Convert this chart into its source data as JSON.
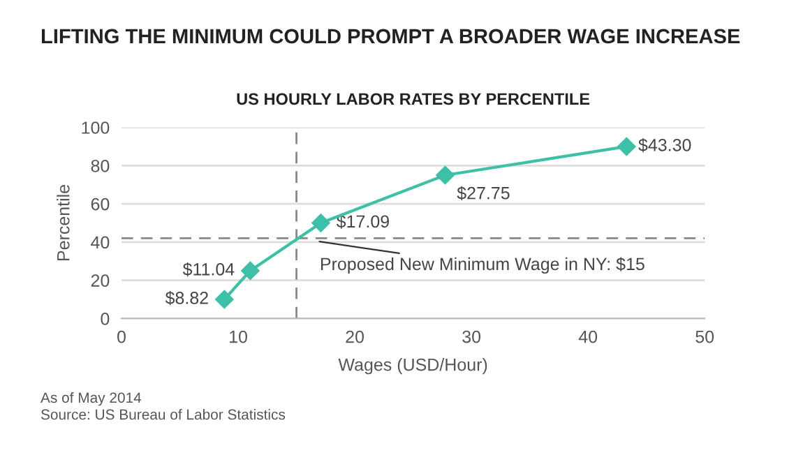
{
  "chart_data": {
    "type": "line",
    "title": "LIFTING THE MINIMUM COULD PROMPT A BROADER WAGE INCREASE",
    "subtitle": "US HOURLY LABOR RATES BY PERCENTILE",
    "xlabel": "Wages (USD/Hour)",
    "ylabel": "Percentile",
    "x": [
      8.82,
      11.04,
      17.09,
      27.75,
      43.3
    ],
    "series": [
      {
        "color": "#3dbfa8",
        "values": [
          10,
          25,
          50,
          75,
          90
        ]
      }
    ],
    "xlim": [
      0,
      50
    ],
    "xticks": [
      0,
      10,
      20,
      30,
      40,
      50
    ],
    "ylim": [
      0,
      100
    ],
    "yticks": [
      0,
      20,
      40,
      60,
      80,
      100
    ],
    "grid": "y",
    "marker": "diamond",
    "line_style": "solid",
    "legend": false,
    "ref_lines": [
      {
        "axis": "x",
        "value": 15,
        "color": "#888888",
        "line_style": "dashed"
      },
      {
        "axis": "y",
        "value": 42,
        "color": "#888888",
        "line_style": "dashed"
      }
    ],
    "annotations": [
      {
        "text": "$8.82",
        "x": 8.82,
        "y": 10
      },
      {
        "text": "$11.04",
        "x": 11.04,
        "y": 25
      },
      {
        "text": "$17.09",
        "x": 17.09,
        "y": 50
      },
      {
        "text": "$27.75",
        "x": 27.75,
        "y": 75
      },
      {
        "text": "$43.30",
        "x": 43.3,
        "y": 90
      },
      {
        "text": "Proposed New Minimum Wage in NY: $15",
        "x": 15,
        "y": 42
      },
      "As of May 2014",
      "Source: US Bureau of Labor Statistics"
    ]
  }
}
